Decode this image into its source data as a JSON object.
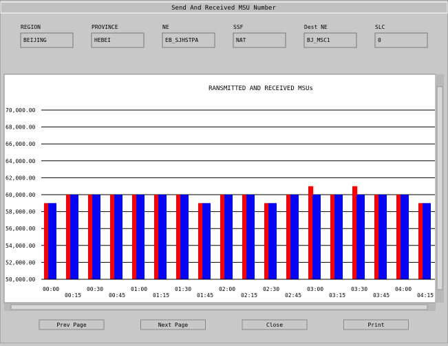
{
  "window": {
    "title": "Send And Received MSU Number"
  },
  "fields": [
    {
      "label": "REGION",
      "value": "BEIJING"
    },
    {
      "label": "PROVINCE",
      "value": "HEBEI"
    },
    {
      "label": "NE",
      "value": "EB_SJHSTPA"
    },
    {
      "label": "SSF",
      "value": "NAT"
    },
    {
      "label": "Dest NE",
      "value": "BJ_MSC1"
    },
    {
      "label": "SLC",
      "value": "0"
    }
  ],
  "chart_data": {
    "type": "bar",
    "title": "RANSMITTED AND RECEIVED MSUs",
    "categories": [
      "00:00",
      "00:15",
      "00:30",
      "00:45",
      "01:00",
      "01:15",
      "01:30",
      "01:45",
      "02:00",
      "02:15",
      "02:30",
      "02:45",
      "03:00",
      "03:15",
      "03:30",
      "03:45",
      "04:00",
      "04:15"
    ],
    "series": [
      {
        "color": "#ff0000",
        "values": [
          59000,
          60000,
          60000,
          60000,
          60000,
          60000,
          60000,
          59000,
          60000,
          60000,
          59000,
          60000,
          61000,
          60000,
          61000,
          60000,
          60000,
          59000
        ]
      },
      {
        "color": "#0000ff",
        "values": [
          59000,
          60000,
          60000,
          60000,
          60000,
          60000,
          60000,
          59000,
          60000,
          60000,
          59000,
          60000,
          60000,
          60000,
          60000,
          60000,
          60000,
          59000
        ]
      }
    ],
    "ylim": [
      50000,
      70000
    ],
    "yticks": [
      {
        "value": 50000,
        "label": "50,000.00"
      },
      {
        "value": 52000,
        "label": "52,000.00"
      },
      {
        "value": 54000,
        "label": "54,000.00"
      },
      {
        "value": 56000,
        "label": "56,000.00"
      },
      {
        "value": 58000,
        "label": "58,000.00"
      },
      {
        "value": 60000,
        "label": "60,000.00"
      },
      {
        "value": 62000,
        "label": "62,000.00"
      },
      {
        "value": 64000,
        "label": "64,000.00"
      },
      {
        "value": 66000,
        "label": "66,000.00"
      },
      {
        "value": 68000,
        "label": "68,000.00"
      },
      {
        "value": 70000,
        "label": "70,000.00"
      }
    ],
    "grid": true
  },
  "buttons": [
    "Prev Page",
    "Next Page",
    "Close",
    "Print"
  ]
}
